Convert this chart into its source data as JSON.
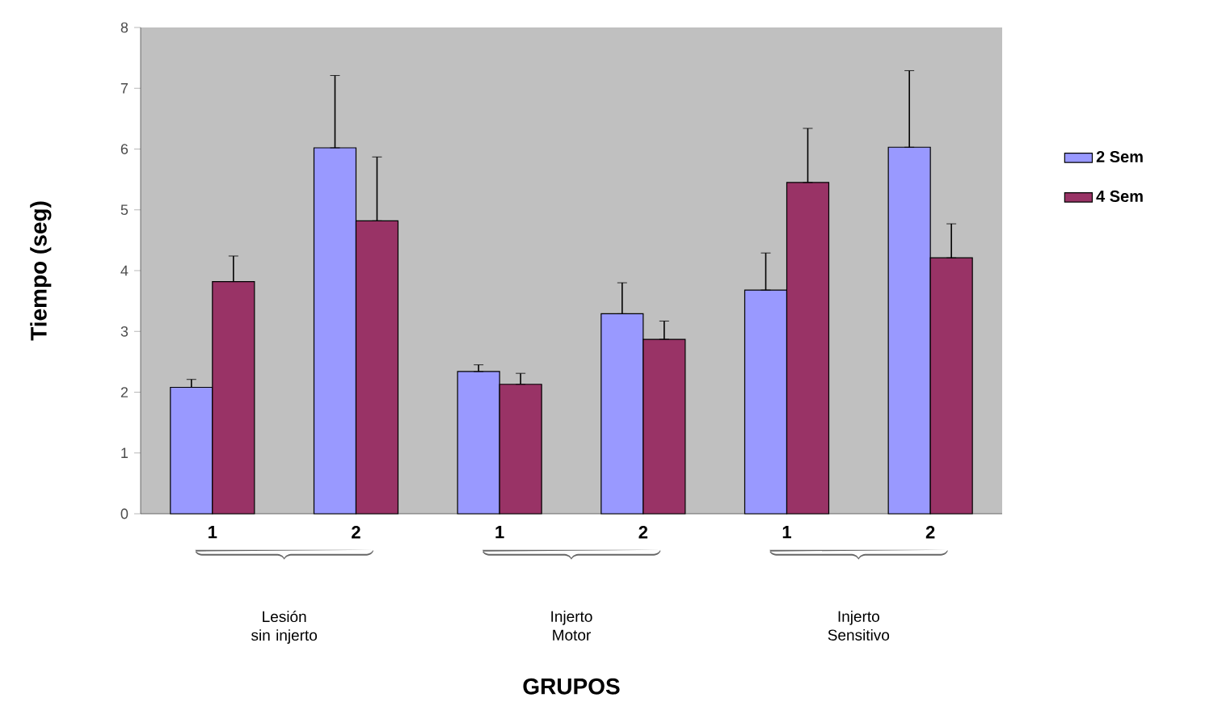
{
  "chart_data": {
    "type": "bar",
    "ylabel": "Tiempo (seg)",
    "categories": [
      "1",
      "2",
      "1",
      "2",
      "1",
      "2"
    ],
    "series": [
      {
        "name": "2 Sem",
        "color": "#9999ff",
        "values": [
          2.08,
          6.02,
          2.34,
          3.29,
          3.68,
          6.03
        ],
        "errors": [
          [
            2.08,
            2.21
          ],
          [
            6.02,
            7.21
          ],
          [
            2.34,
            2.45
          ],
          [
            3.29,
            3.8
          ],
          [
            3.68,
            4.29
          ],
          [
            6.03,
            7.29
          ]
        ]
      },
      {
        "name": "4 Sem",
        "color": "#993366",
        "values": [
          3.82,
          4.82,
          2.13,
          2.87,
          5.45,
          4.21
        ],
        "errors": [
          [
            3.82,
            4.24
          ],
          [
            4.82,
            5.87
          ],
          [
            2.13,
            2.31
          ],
          [
            2.87,
            3.17
          ],
          [
            5.45,
            6.34
          ],
          [
            4.21,
            4.77
          ]
        ]
      }
    ],
    "annotations": [
      "Lesión sin injerto",
      "Injerto Motor",
      "Injerto Sensitivo",
      "GRUPOS"
    ],
    "ylim": [
      0,
      8
    ],
    "yticks": [
      0,
      1,
      2,
      3,
      4,
      5,
      6,
      7,
      8
    ],
    "legend": "right"
  }
}
